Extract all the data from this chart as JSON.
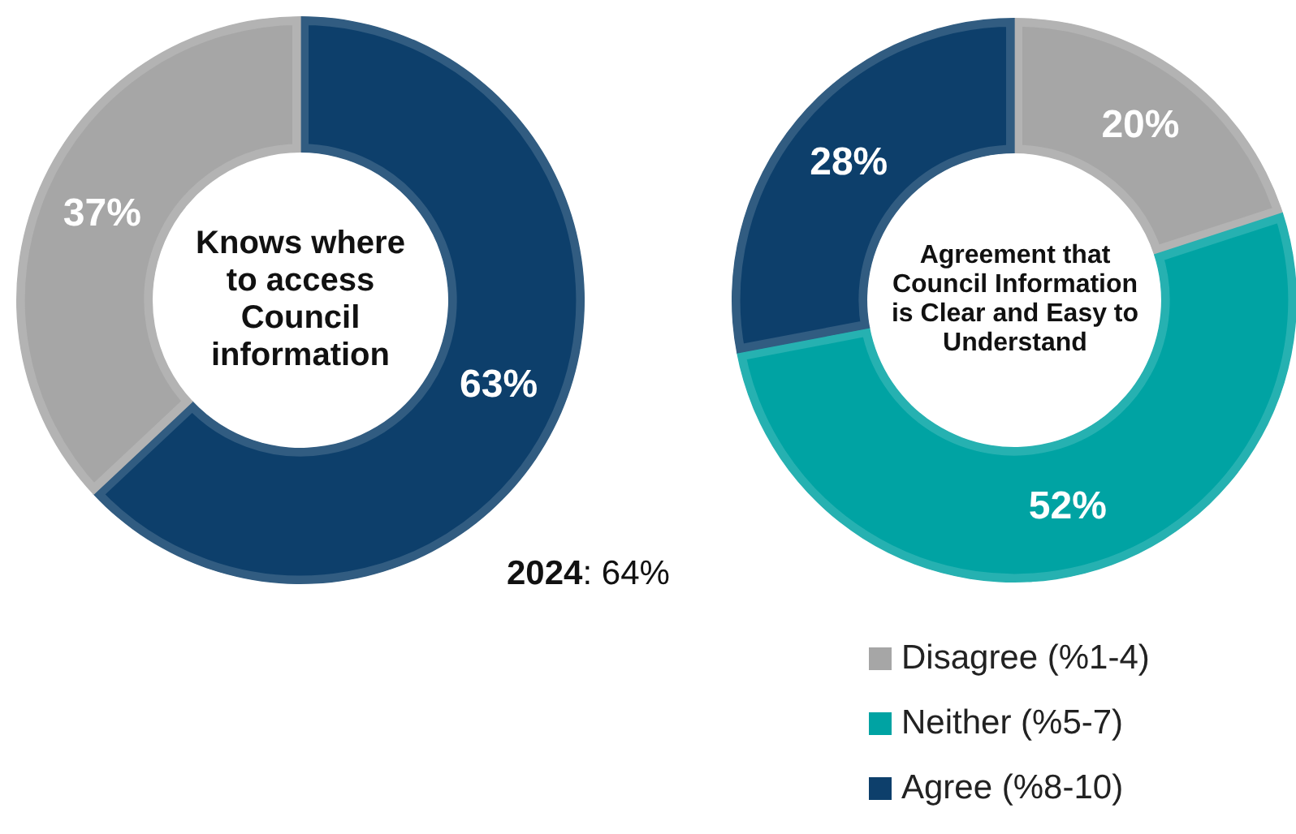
{
  "chart_data": [
    {
      "type": "donut",
      "title": "Knows where to access Council information",
      "categories": [
        null,
        null
      ],
      "values": [
        63,
        37
      ],
      "colors": [
        "#0d3f6b",
        "#a6a6a6"
      ],
      "value_labels": [
        "63%",
        "37%"
      ],
      "annotations": [
        "2024: 64%"
      ]
    },
    {
      "type": "donut",
      "title": "Agreement that Council Information is Clear and Easy to Understand",
      "categories": [
        "Disagree (%1-4)",
        "Neither (%5-7)",
        "Agree (%8-10)"
      ],
      "values": [
        20,
        52,
        28
      ],
      "colors": [
        "#a6a6a6",
        "#00a3a3",
        "#0d3f6b"
      ],
      "value_labels": [
        "20%",
        "52%",
        "28%"
      ],
      "legend": "bottom"
    }
  ]
}
